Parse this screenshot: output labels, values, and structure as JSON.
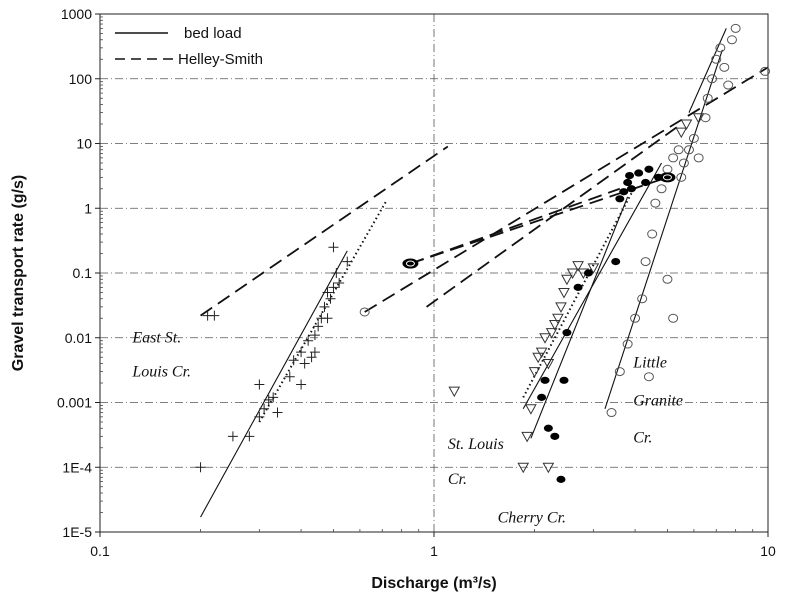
{
  "chart_data": {
    "type": "scatter",
    "xlabel": "Discharge (m³/s)",
    "ylabel": "Gravel transport rate (g/s)",
    "xscale": "log",
    "yscale": "log",
    "xlim": [
      0.1,
      10
    ],
    "ylim": [
      1e-05,
      1000
    ],
    "grid": "dash-dot, major decades",
    "x_ticks": [
      {
        "value": 0.1,
        "label": "0.1"
      },
      {
        "value": 1,
        "label": "1"
      },
      {
        "value": 10,
        "label": "10"
      }
    ],
    "y_ticks": [
      {
        "value": 1e-05,
        "label": "1E-5"
      },
      {
        "value": 0.0001,
        "label": "1E-4"
      },
      {
        "value": 0.001,
        "label": "0.001"
      },
      {
        "value": 0.01,
        "label": "0.01"
      },
      {
        "value": 0.1,
        "label": "0.1"
      },
      {
        "value": 1,
        "label": "1"
      },
      {
        "value": 10,
        "label": "10"
      },
      {
        "value": 100,
        "label": "100"
      },
      {
        "value": 1000,
        "label": "1000"
      }
    ],
    "legend": {
      "placement": "top-left",
      "entries": [
        {
          "label": "bed load",
          "style": "solid"
        },
        {
          "label": "Helley-Smith",
          "style": "dashed"
        }
      ]
    },
    "annotations": [
      {
        "text": "East St.",
        "x": 0.125,
        "y": 0.0085
      },
      {
        "text": "Louis Cr.",
        "x": 0.125,
        "y": 0.0025
      },
      {
        "text": "St. Louis",
        "x": 1.1,
        "y": 0.00019
      },
      {
        "text": "Cr.",
        "x": 1.1,
        "y": 5.5e-05
      },
      {
        "text": "Cherry Cr.",
        "x": 1.55,
        "y": 1.4e-05
      },
      {
        "text": "Little",
        "x": 3.95,
        "y": 0.0035
      },
      {
        "text": "Granite",
        "x": 3.95,
        "y": 0.0009
      },
      {
        "text": "Cr.",
        "x": 3.95,
        "y": 0.00024
      }
    ],
    "series": [
      {
        "name": "East St. Louis Cr.",
        "marker": "plus",
        "points": [
          [
            0.2,
            0.0001
          ],
          [
            0.21,
            0.022
          ],
          [
            0.22,
            0.022
          ],
          [
            0.25,
            0.0003
          ],
          [
            0.28,
            0.0003
          ],
          [
            0.3,
            0.0006
          ],
          [
            0.31,
            0.0008
          ],
          [
            0.32,
            0.0011
          ],
          [
            0.3,
            0.0019
          ],
          [
            0.33,
            0.0012
          ],
          [
            0.34,
            0.0007
          ],
          [
            0.37,
            0.0025
          ],
          [
            0.38,
            0.0045
          ],
          [
            0.4,
            0.006
          ],
          [
            0.4,
            0.0019
          ],
          [
            0.41,
            0.004
          ],
          [
            0.42,
            0.009
          ],
          [
            0.43,
            0.005
          ],
          [
            0.44,
            0.011
          ],
          [
            0.45,
            0.015
          ],
          [
            0.46,
            0.02
          ],
          [
            0.47,
            0.03
          ],
          [
            0.48,
            0.05
          ],
          [
            0.49,
            0.04
          ],
          [
            0.5,
            0.06
          ],
          [
            0.44,
            0.006
          ],
          [
            0.51,
            0.1
          ],
          [
            0.52,
            0.07
          ],
          [
            0.48,
            0.02
          ],
          [
            0.55,
            0.15
          ],
          [
            0.5,
            0.25
          ]
        ]
      },
      {
        "name": "St. Louis Cr.",
        "marker": "triangle-down",
        "points": [
          [
            1.15,
            0.0015
          ],
          [
            1.85,
            0.0001
          ],
          [
            1.9,
            0.0003
          ],
          [
            1.95,
            0.0008
          ],
          [
            2.0,
            0.003
          ],
          [
            2.05,
            0.005
          ],
          [
            2.1,
            0.006
          ],
          [
            2.2,
            0.004
          ],
          [
            2.15,
            0.01
          ],
          [
            2.25,
            0.012
          ],
          [
            2.3,
            0.016
          ],
          [
            2.35,
            0.02
          ],
          [
            2.4,
            0.03
          ],
          [
            2.45,
            0.05
          ],
          [
            2.5,
            0.08
          ],
          [
            2.6,
            0.1
          ],
          [
            2.2,
            0.0001
          ],
          [
            2.7,
            0.13
          ],
          [
            2.8,
            0.1
          ],
          [
            3.0,
            0.12
          ],
          [
            5.5,
            15
          ],
          [
            5.7,
            20
          ],
          [
            6.2,
            25
          ]
        ]
      },
      {
        "name": "Cherry Cr.",
        "marker": "filled-circle",
        "points": [
          [
            2.1,
            0.0012
          ],
          [
            2.15,
            0.0022
          ],
          [
            2.2,
            0.0004
          ],
          [
            2.3,
            0.0003
          ],
          [
            2.4,
            6.5e-05
          ],
          [
            2.45,
            0.0022
          ],
          [
            2.5,
            0.012
          ],
          [
            2.7,
            0.06
          ],
          [
            2.9,
            0.1
          ],
          [
            3.5,
            0.15
          ],
          [
            3.6,
            1.4
          ],
          [
            3.7,
            1.8
          ],
          [
            3.8,
            2.5
          ],
          [
            3.85,
            3.2
          ],
          [
            3.9,
            2
          ],
          [
            4.1,
            3.5
          ],
          [
            4.3,
            2.5
          ],
          [
            4.4,
            4
          ],
          [
            4.7,
            3
          ],
          [
            5.0,
            3
          ]
        ]
      },
      {
        "name": "Little Granite Cr.",
        "marker": "open-circle",
        "points": [
          [
            0.62,
            0.025
          ],
          [
            3.4,
            0.0007
          ],
          [
            3.6,
            0.003
          ],
          [
            3.8,
            0.008
          ],
          [
            4.0,
            0.02
          ],
          [
            4.2,
            0.04
          ],
          [
            4.3,
            0.15
          ],
          [
            4.5,
            0.4
          ],
          [
            4.6,
            1.2
          ],
          [
            4.8,
            2
          ],
          [
            5.0,
            4
          ],
          [
            5.2,
            6
          ],
          [
            5.4,
            8
          ],
          [
            5.5,
            3
          ],
          [
            5.6,
            5
          ],
          [
            5.8,
            8
          ],
          [
            6.0,
            12
          ],
          [
            6.2,
            6
          ],
          [
            6.5,
            25
          ],
          [
            6.6,
            50
          ],
          [
            6.8,
            100
          ],
          [
            7.0,
            200
          ],
          [
            7.2,
            300
          ],
          [
            7.4,
            150
          ],
          [
            7.6,
            80
          ],
          [
            7.8,
            400
          ],
          [
            8.0,
            600
          ],
          [
            9.8,
            130
          ],
          [
            5.0,
            0.08
          ],
          [
            4.4,
            0.0025
          ],
          [
            5.2,
            0.02
          ]
        ]
      }
    ],
    "fit_lines": [
      {
        "style": "solid",
        "from": [
          0.2,
          1.7e-05
        ],
        "to": [
          0.55,
          0.22
        ]
      },
      {
        "style": "dotted",
        "from": [
          0.3,
          0.0005
        ],
        "to": [
          0.72,
          1.3
        ]
      },
      {
        "style": "solid",
        "from": [
          1.95,
          0.00028
        ],
        "to": [
          3.8,
          1.5
        ]
      },
      {
        "style": "solid",
        "from": [
          1.85,
          0.0008
        ],
        "to": [
          4.8,
          5
        ]
      },
      {
        "style": "dotted",
        "from": [
          1.85,
          0.0012
        ],
        "to": [
          3.9,
          1.7
        ]
      },
      {
        "style": "solid",
        "from": [
          3.25,
          0.0008
        ],
        "to": [
          7.3,
          280
        ]
      },
      {
        "style": "solid",
        "from": [
          5.8,
          30
        ],
        "to": [
          7.5,
          600
        ]
      },
      {
        "style": "dashed",
        "from": [
          0.2,
          0.022
        ],
        "to": [
          1.1,
          9
        ]
      },
      {
        "style": "dashed",
        "from": [
          0.85,
          0.14
        ],
        "to": [
          5.0,
          3
        ]
      },
      {
        "style": "dashed",
        "from": [
          0.85,
          0.14
        ],
        "to": [
          3.6,
          2
        ]
      },
      {
        "style": "dashed",
        "from": [
          0.95,
          0.03
        ],
        "to": [
          5.5,
          20
        ]
      },
      {
        "style": "dashed",
        "from": [
          0.62,
          0.025
        ],
        "to": [
          10,
          150
        ]
      }
    ]
  }
}
